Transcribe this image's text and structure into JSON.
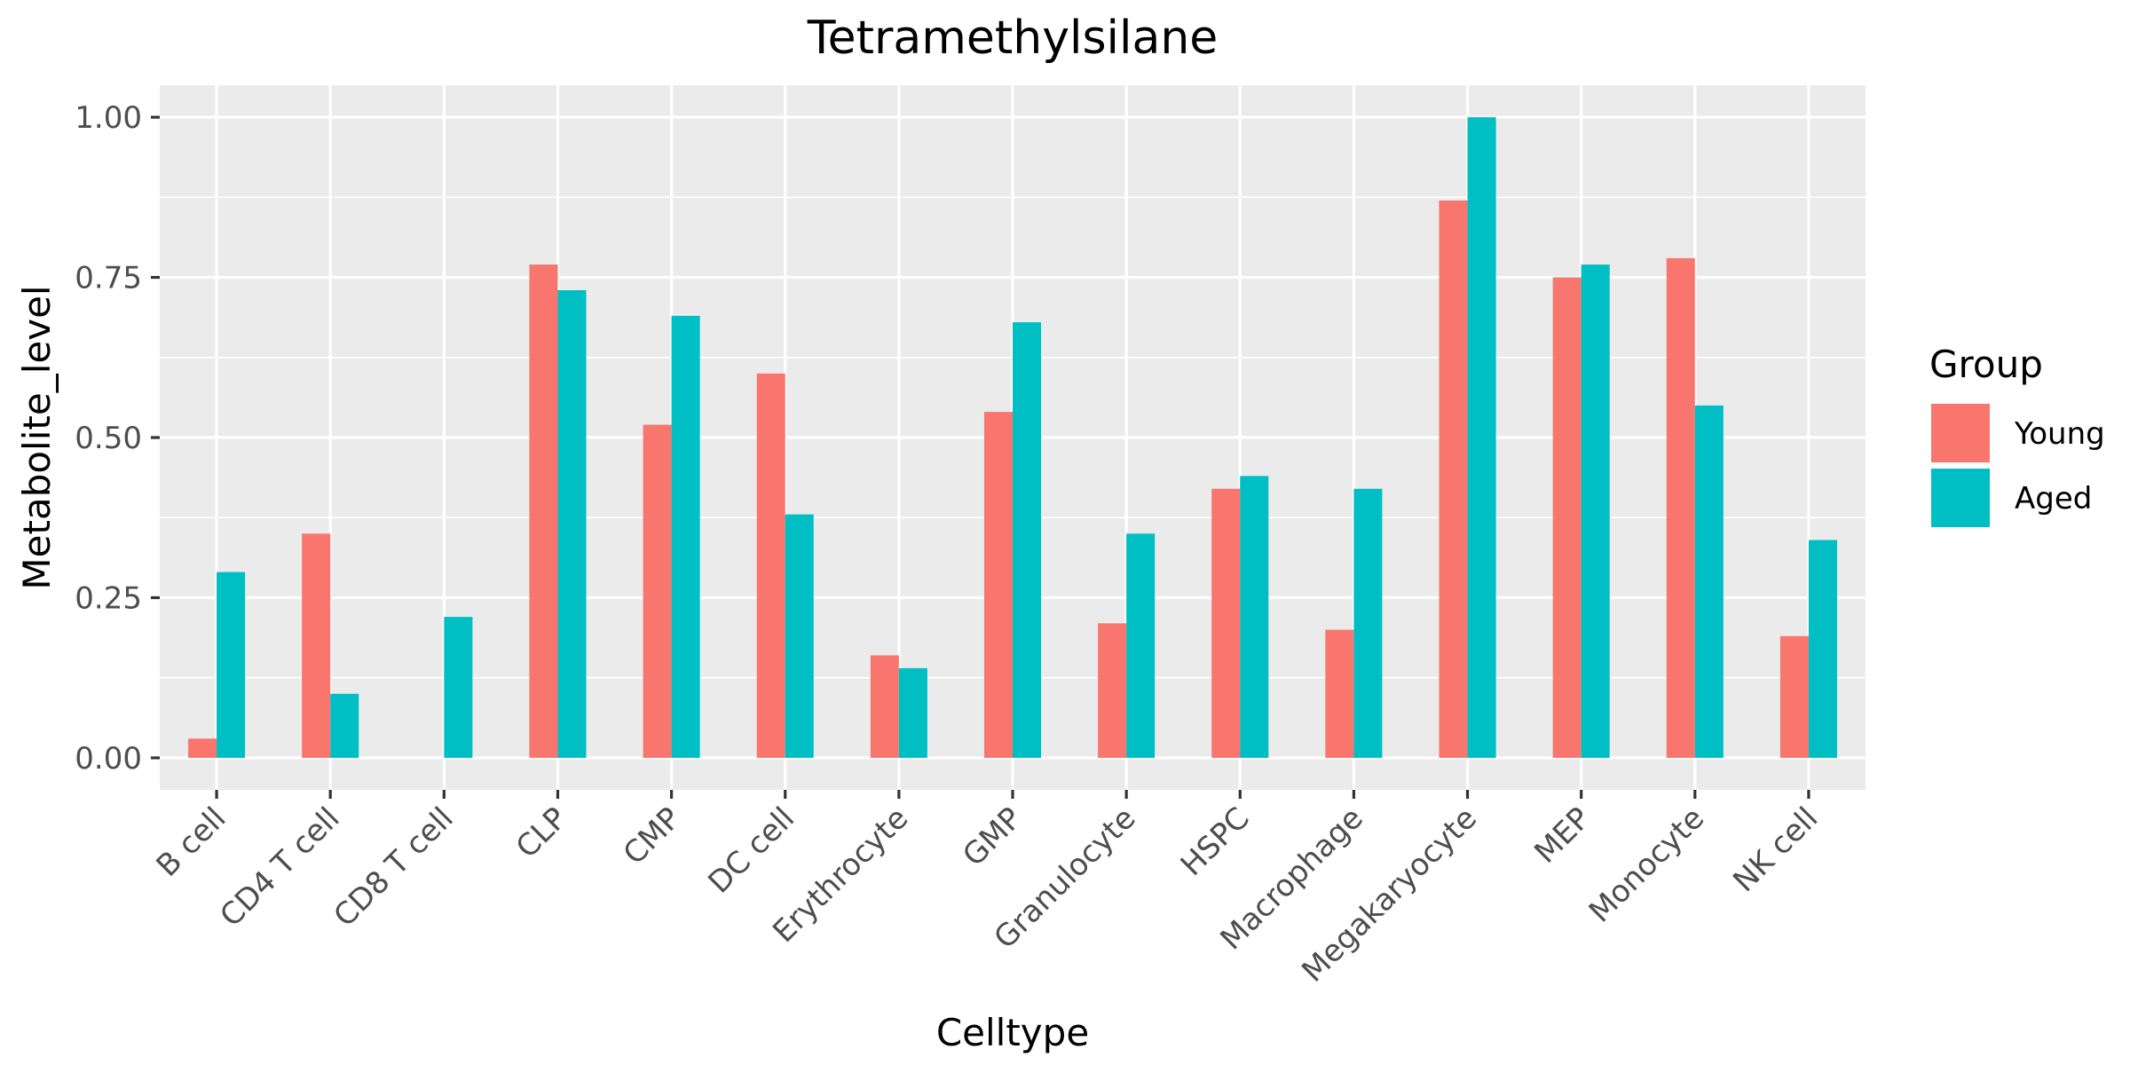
{
  "chart_data": {
    "type": "bar",
    "title": "Tetramethylsilane",
    "xlabel": "Celltype",
    "ylabel": "Metabolite_level",
    "ylim": [
      -0.05,
      1.05
    ],
    "yticks": [
      0.0,
      0.25,
      0.5,
      0.75,
      1.0
    ],
    "ytick_labels": [
      "0.00",
      "0.25",
      "0.50",
      "0.75",
      "1.00"
    ],
    "grid": true,
    "legend": {
      "title": "Group",
      "position": "right"
    },
    "categories": [
      "B cell",
      "CD4 T cell",
      "CD8 T cell",
      "CLP",
      "CMP",
      "DC cell",
      "Erythrocyte",
      "GMP",
      "Granulocyte",
      "HSPC",
      "Macrophage",
      "Megakaryocyte",
      "MEP",
      "Monocyte",
      "NK cell"
    ],
    "series": [
      {
        "name": "Young",
        "color": "#f8766d",
        "values": [
          0.03,
          0.35,
          0.0,
          0.77,
          0.52,
          0.6,
          0.16,
          0.54,
          0.21,
          0.42,
          0.2,
          0.87,
          0.75,
          0.78,
          0.19
        ]
      },
      {
        "name": "Aged",
        "color": "#00bfc4",
        "values": [
          0.29,
          0.1,
          0.22,
          0.73,
          0.69,
          0.38,
          0.14,
          0.68,
          0.35,
          0.44,
          0.42,
          1.0,
          0.77,
          0.55,
          0.34
        ]
      }
    ]
  },
  "colors": {
    "panel": "#ebebeb",
    "grid": "#ffffff",
    "tick": "#333333"
  }
}
